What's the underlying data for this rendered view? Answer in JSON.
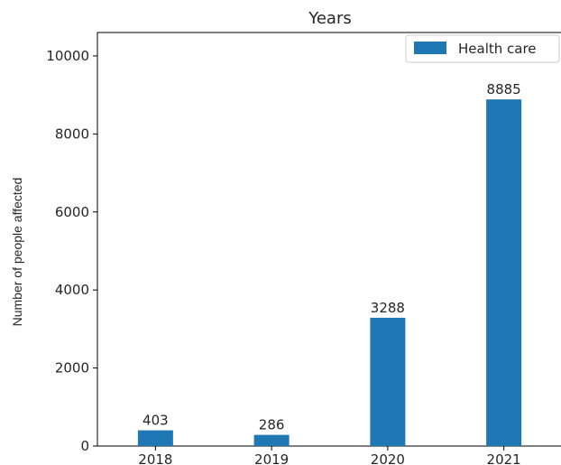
{
  "chart_data": {
    "type": "bar",
    "title": "Years",
    "xlabel": "",
    "ylabel": "Number of people affected",
    "categories": [
      "2018",
      "2019",
      "2020",
      "2021"
    ],
    "series": [
      {
        "name": "Health care",
        "values": [
          403,
          286,
          3288,
          8885
        ],
        "color": "#1f77b4"
      }
    ],
    "data_labels": [
      "403",
      "286",
      "3288",
      "8885"
    ],
    "ylim": [
      0,
      10600
    ],
    "yticks": [
      0,
      2000,
      4000,
      6000,
      8000,
      10000
    ],
    "ytick_labels": [
      "0",
      "2000",
      "4000",
      "6000",
      "8000",
      "10000"
    ],
    "grid": false,
    "legend_position": "top-right"
  }
}
